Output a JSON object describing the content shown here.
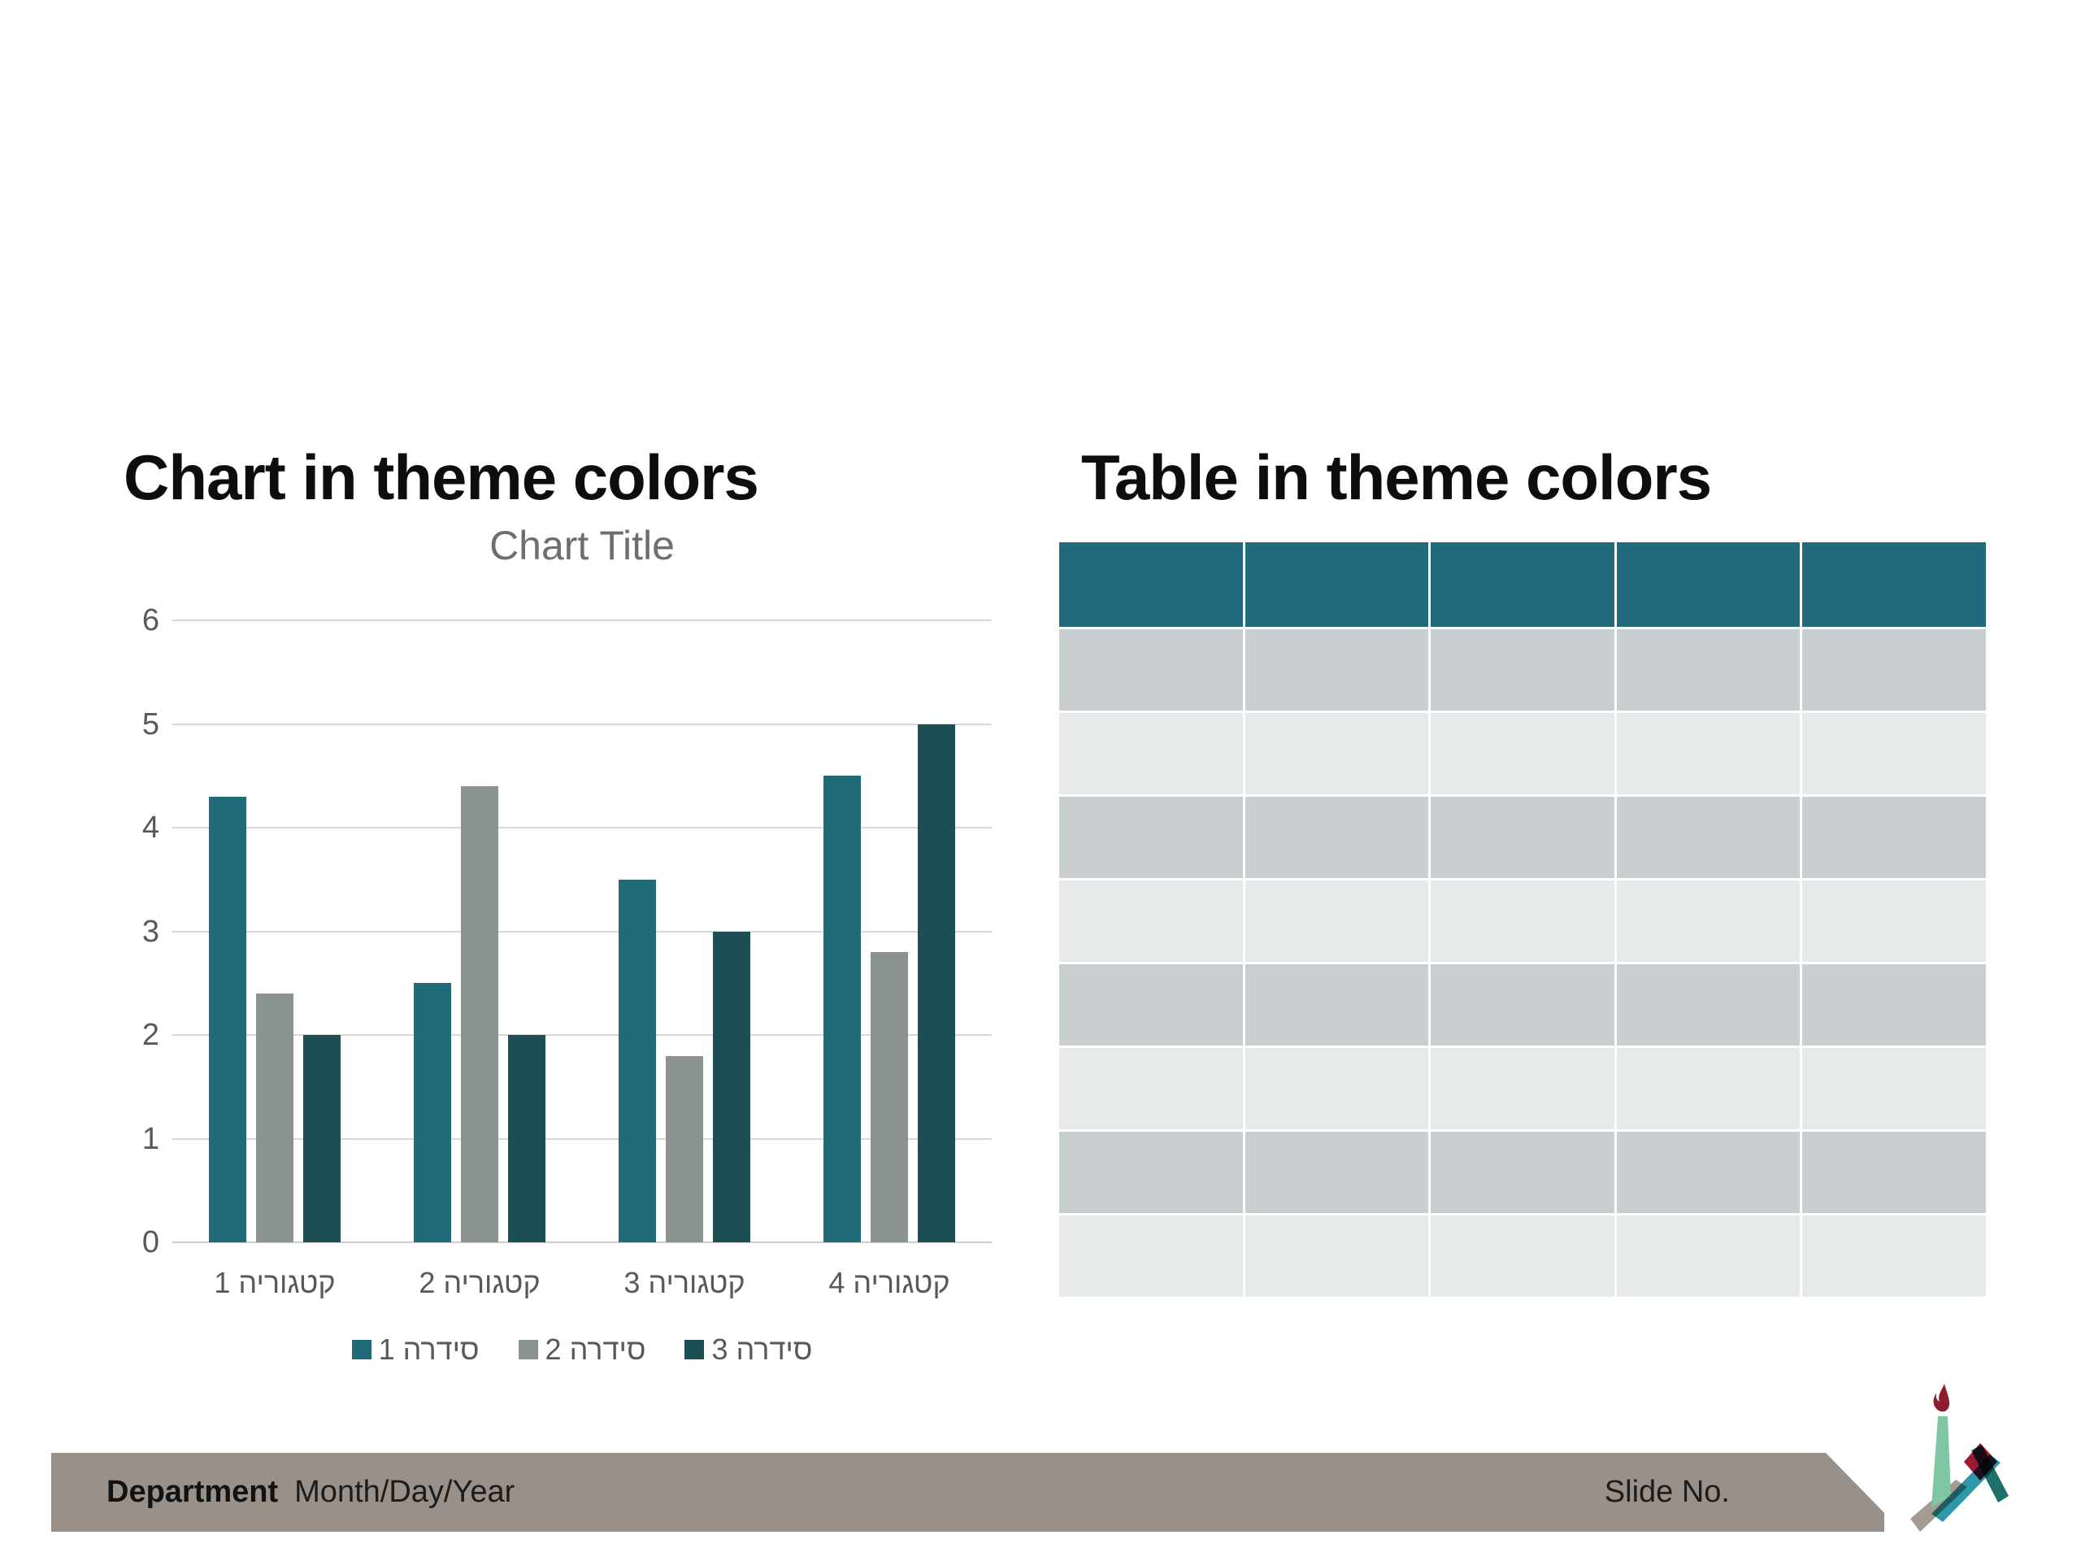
{
  "sections": {
    "chart_heading": "Chart in theme colors",
    "table_heading": "Table in theme colors"
  },
  "chart_data": {
    "type": "bar",
    "title": "Chart Title",
    "categories": [
      "קטגוריה 1",
      "קטגוריה 2",
      "קטגוריה 3",
      "קטגוריה 4"
    ],
    "series": [
      {
        "name": "סידרה 1",
        "color": "#1f6b7a",
        "values": [
          4.3,
          2.5,
          3.5,
          4.5
        ]
      },
      {
        "name": "סידרה 2",
        "color": "#8a938f",
        "values": [
          2.4,
          4.4,
          1.8,
          2.8
        ]
      },
      {
        "name": "סידרה 3",
        "color": "#1b4f53",
        "values": [
          2,
          2,
          3,
          5
        ]
      }
    ],
    "ylim": [
      0,
      6
    ],
    "yticks": [
      0,
      1,
      2,
      3,
      4,
      5,
      6
    ],
    "grid": true,
    "legend_position": "bottom",
    "rtl_labels": true,
    "axis_text_color": "#595959",
    "title_color": "#6e6e6e",
    "gridline_color": "#d8d8d8"
  },
  "table": {
    "columns": 5,
    "body_rows": 8,
    "header_color": "#21697b",
    "row_alt_colors": [
      "#c9ced1",
      "#e7eaea"
    ],
    "divider_color": "#ffffff"
  },
  "footer": {
    "department_label": "Department",
    "date_label": "Month/Day/Year",
    "slide_no_label": "Slide No.",
    "bar_color": "#99908a"
  },
  "logo": {
    "name": "torch-logo",
    "colors": {
      "flame": "#8e1e2d",
      "pillar": "#7ec6a4",
      "base": "#a49b93",
      "ribbon_teal": "#2f99a9",
      "ribbon_dark": "#20706a",
      "diamond": "#9c1b31"
    }
  }
}
